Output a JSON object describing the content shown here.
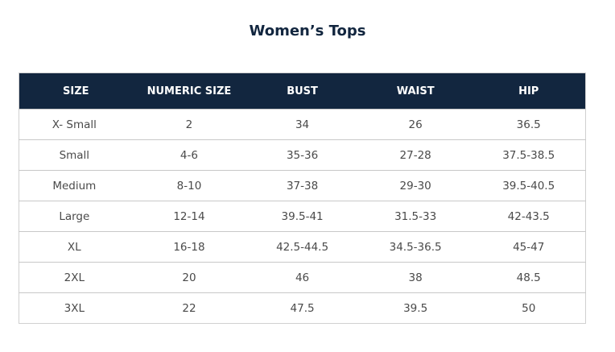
{
  "title": "Women’s Tops",
  "headers": [
    "SIZE",
    "NUMERIC SIZE",
    "BUST",
    "WAIST",
    "HIP"
  ],
  "rows": [
    [
      "X- Small",
      "2",
      "34",
      "26",
      "36.5"
    ],
    [
      "Small",
      "4-6",
      "35-36",
      "27-28",
      "37.5-38.5"
    ],
    [
      "Medium",
      "8-10",
      "37-38",
      "29-30",
      "39.5-40.5"
    ],
    [
      "Large",
      "12-14",
      "39.5-41",
      "31.5-33",
      "42-43.5"
    ],
    [
      "XL",
      "16-18",
      "42.5-44.5",
      "34.5-36.5",
      "45-47"
    ],
    [
      "2XL",
      "20",
      "46",
      "38",
      "48.5"
    ],
    [
      "3XL",
      "22",
      "47.5",
      "39.5",
      "50"
    ]
  ],
  "colors": {
    "header_bg": "#12263f",
    "title": "#12263f"
  }
}
